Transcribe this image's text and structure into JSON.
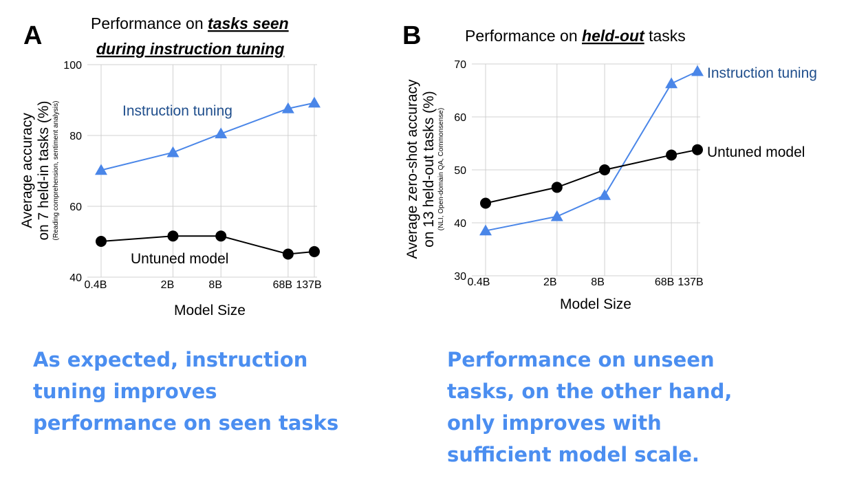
{
  "panels": [
    {
      "letter": "A",
      "title_line1_prefix": "Performance on ",
      "title_line1_emph": "tasks seen",
      "title_line2_emph": "during instruction tuning",
      "ylabel_line1": "Average accuracy",
      "ylabel_line2": "on 7 held-in tasks (%)",
      "ylabel_sub": "(Reading comprehension, sentiment analysis)",
      "xlabel": "Model Size",
      "caption_lines": [
        "As expected, instruction",
        "tuning improves",
        "performance on seen tasks"
      ]
    },
    {
      "letter": "B",
      "title_prefix": "Performance on ",
      "title_emph": "held-out",
      "title_suffix": " tasks",
      "ylabel_line1": "Average zero-shot accuracy",
      "ylabel_line2": "on 13 held-out tasks (%)",
      "ylabel_sub": "(NLI, Open-domain QA, Commonsense)",
      "xlabel": "Model Size",
      "caption_lines": [
        "Performance on unseen",
        "tasks, on the other hand,",
        "only improves with",
        "sufficient model scale."
      ]
    }
  ],
  "colors": {
    "instruction_tuning": "#4a86e8",
    "instruction_tuning_label": "#1f4e8c",
    "untuned": "#000000",
    "grid": "#d0d0d0",
    "caption": "#4b8ef0"
  },
  "chart_data": [
    {
      "type": "line",
      "categories": [
        "0.4B",
        "2B",
        "8B",
        "68B",
        "137B"
      ],
      "ylim": [
        40,
        100
      ],
      "yticks": [
        "40",
        "60",
        "80",
        "100"
      ],
      "xlabel": "Model Size",
      "ylabel": "Average accuracy on 7 held-in tasks (%)",
      "grid": true,
      "series": [
        {
          "name": "Instruction tuning",
          "marker": "triangle",
          "values": [
            70.2,
            75.2,
            80.5,
            87.6,
            89.2
          ]
        },
        {
          "name": "Untuned model",
          "marker": "circle",
          "values": [
            50.1,
            51.6,
            51.6,
            46.5,
            47.2
          ]
        }
      ]
    },
    {
      "type": "line",
      "categories": [
        "0.4B",
        "2B",
        "8B",
        "68B",
        "137B"
      ],
      "ylim": [
        30,
        70
      ],
      "yticks": [
        "30",
        "40",
        "50",
        "60",
        "70"
      ],
      "xlabel": "Model Size",
      "ylabel": "Average zero-shot accuracy on 13 held-out tasks (%)",
      "grid": true,
      "series": [
        {
          "name": "Instruction tuning",
          "marker": "triangle",
          "values": [
            38.5,
            41.2,
            45.2,
            66.3,
            68.6
          ]
        },
        {
          "name": "Untuned model",
          "marker": "circle",
          "values": [
            43.7,
            46.7,
            50.0,
            52.8,
            53.8
          ]
        }
      ]
    }
  ]
}
